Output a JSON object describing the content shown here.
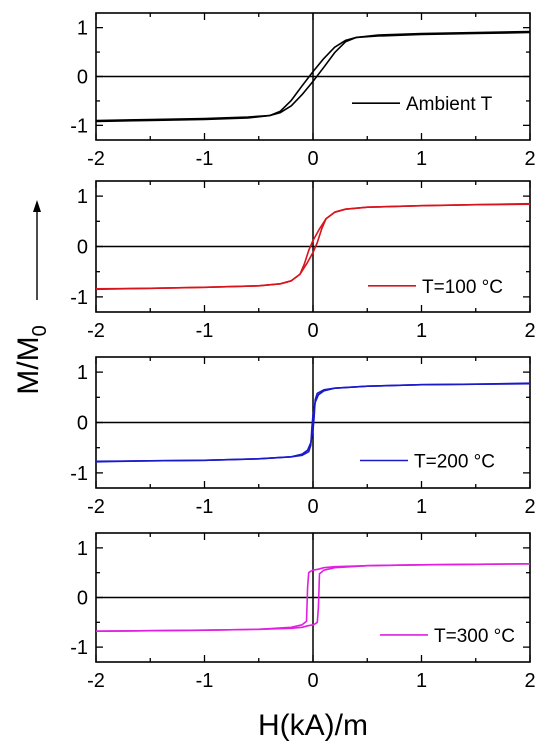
{
  "chart_data": {
    "type": "line",
    "xlabel": "H(kA)/m",
    "ylabel": "M/M",
    "ylabel_subscript": "0",
    "xlim": [
      -2,
      2
    ],
    "ylim": [
      -1.3,
      1.3
    ],
    "x_ticks": [
      -2,
      -1,
      0,
      1,
      2
    ],
    "x_tick_labels": [
      "-2",
      "-1",
      "0",
      "1",
      "2"
    ],
    "y_ticks": [
      1,
      0,
      -1
    ],
    "y_tick_labels": [
      "1",
      "0",
      "-1"
    ],
    "grid": false,
    "panels": [
      {
        "legend": "Ambient T",
        "legend_placement": "right-lower",
        "color": "#000000",
        "series": [
          {
            "x": [
              -2,
              -1.5,
              -1,
              -0.6,
              -0.4,
              -0.3,
              -0.2,
              -0.1,
              0,
              0.1,
              0.2,
              0.3,
              0.4,
              0.6,
              1,
              1.5,
              2
            ],
            "values": [
              -0.9,
              -0.88,
              -0.86,
              -0.83,
              -0.8,
              -0.74,
              -0.6,
              -0.37,
              -0.1,
              0.19,
              0.49,
              0.71,
              0.8,
              0.85,
              0.88,
              0.9,
              0.92
            ]
          },
          {
            "x": [
              -2,
              -1.5,
              -1,
              -0.6,
              -0.4,
              -0.3,
              -0.2,
              -0.1,
              0,
              0.1,
              0.2,
              0.3,
              0.4,
              0.6,
              1,
              1.5,
              2
            ],
            "values": [
              -0.92,
              -0.9,
              -0.88,
              -0.85,
              -0.8,
              -0.71,
              -0.49,
              -0.19,
              0.1,
              0.37,
              0.6,
              0.74,
              0.8,
              0.83,
              0.86,
              0.88,
              0.9
            ]
          }
        ]
      },
      {
        "legend": "T=100 °C",
        "legend_placement": "right-lower",
        "color": "#d8141c",
        "series": [
          {
            "x": [
              -2,
              -1.5,
              -1,
              -0.5,
              -0.3,
              -0.2,
              -0.12,
              -0.06,
              0,
              0.04,
              0.08,
              0.12,
              0.2,
              0.3,
              0.5,
              1,
              1.5,
              2
            ],
            "values": [
              -0.84,
              -0.83,
              -0.81,
              -0.78,
              -0.74,
              -0.68,
              -0.55,
              -0.35,
              -0.12,
              0.08,
              0.35,
              0.55,
              0.68,
              0.74,
              0.78,
              0.81,
              0.83,
              0.85
            ]
          },
          {
            "x": [
              -2,
              -1.5,
              -1,
              -0.5,
              -0.3,
              -0.2,
              -0.12,
              -0.08,
              -0.04,
              0,
              0.06,
              0.12,
              0.2,
              0.3,
              0.5,
              1,
              1.5,
              2
            ],
            "values": [
              -0.85,
              -0.83,
              -0.81,
              -0.78,
              -0.74,
              -0.68,
              -0.55,
              -0.35,
              -0.08,
              0.12,
              0.35,
              0.55,
              0.68,
              0.74,
              0.78,
              0.81,
              0.83,
              0.84
            ]
          }
        ]
      },
      {
        "legend": "T=200 °C",
        "legend_placement": "right-lower",
        "color": "#1a1ac8",
        "series": [
          {
            "x": [
              -2,
              -1.5,
              -1,
              -0.5,
              -0.2,
              -0.1,
              -0.05,
              -0.02,
              0,
              0.01,
              0.02,
              0.04,
              0.1,
              0.2,
              0.5,
              1,
              1.5,
              2
            ],
            "values": [
              -0.77,
              -0.76,
              -0.75,
              -0.72,
              -0.68,
              -0.63,
              -0.55,
              -0.4,
              -0.15,
              0.1,
              0.45,
              0.58,
              0.65,
              0.68,
              0.72,
              0.75,
              0.76,
              0.78
            ]
          },
          {
            "x": [
              -2,
              -1.5,
              -1,
              -0.5,
              -0.2,
              -0.1,
              -0.04,
              -0.02,
              -0.01,
              0,
              0.02,
              0.05,
              0.1,
              0.2,
              0.5,
              1,
              1.5,
              2
            ],
            "values": [
              -0.78,
              -0.76,
              -0.75,
              -0.72,
              -0.68,
              -0.65,
              -0.58,
              -0.45,
              -0.1,
              0.15,
              0.4,
              0.55,
              0.63,
              0.68,
              0.72,
              0.75,
              0.76,
              0.77
            ]
          }
        ]
      },
      {
        "legend": "T=300 °C",
        "legend_placement": "right-lower",
        "color": "#e020e0",
        "series": [
          {
            "x": [
              -2,
              -1.5,
              -1,
              -0.5,
              -0.2,
              -0.1,
              -0.05,
              0,
              0.02,
              0.04,
              0.05,
              0.06,
              0.1,
              0.2,
              0.5,
              1,
              1.5,
              2
            ],
            "values": [
              -0.68,
              -0.67,
              -0.66,
              -0.64,
              -0.62,
              -0.6,
              -0.57,
              -0.55,
              -0.53,
              -0.5,
              -0.2,
              0.48,
              0.55,
              0.6,
              0.64,
              0.66,
              0.67,
              0.68
            ]
          },
          {
            "x": [
              -2,
              -1.5,
              -1,
              -0.5,
              -0.2,
              -0.1,
              -0.06,
              -0.05,
              -0.04,
              -0.02,
              0,
              0.05,
              0.1,
              0.2,
              0.5,
              1,
              1.5,
              2
            ],
            "values": [
              -0.68,
              -0.67,
              -0.66,
              -0.64,
              -0.6,
              -0.55,
              -0.48,
              0.2,
              0.5,
              0.53,
              0.55,
              0.57,
              0.6,
              0.62,
              0.64,
              0.66,
              0.67,
              0.68
            ]
          }
        ]
      }
    ]
  }
}
